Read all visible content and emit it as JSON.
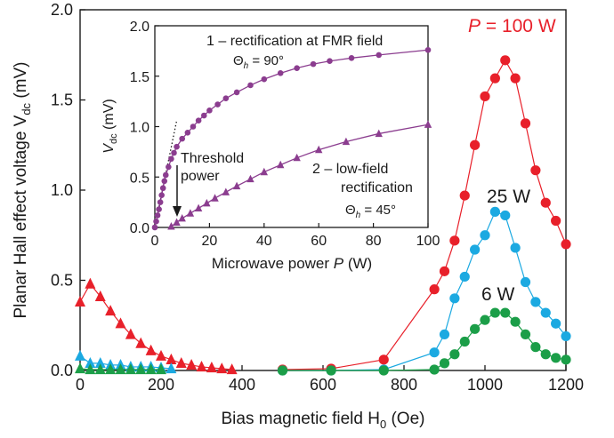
{
  "chart_data": [
    {
      "type": "line",
      "title": "",
      "xlabel_main": "Bias magnetic field H",
      "xlabel_sub": "0",
      "xlabel_unit": " (Oe)",
      "ylabel_main": "Planar Hall effect voltage V",
      "ylabel_sub": "dc",
      "ylabel_unit": " (mV)",
      "xlim": [
        0,
        1200
      ],
      "ylim": [
        0,
        2.0
      ],
      "xticks": [
        0,
        200,
        400,
        600,
        800,
        1000,
        1200
      ],
      "yticks": [
        0.0,
        0.5,
        1.0,
        1.5,
        2.0
      ],
      "ytick_labels": [
        "0.0",
        "0.5",
        "1.0",
        "1.5",
        "2.0"
      ],
      "grid": false,
      "series": [
        {
          "name": "P = 100 W",
          "label_p": "P",
          "label_rest": " = 100 W",
          "color": "#e8202a",
          "lowfield_marker": "triangle",
          "lowfield": {
            "x": [
              0,
              25,
              50,
              75,
              100,
              125,
              150,
              175,
              200,
              225,
              250,
              275,
              300,
              325,
              350,
              375
            ],
            "y": [
              0.38,
              0.48,
              0.41,
              0.33,
              0.26,
              0.2,
              0.15,
              0.11,
              0.08,
              0.06,
              0.04,
              0.03,
              0.02,
              0.015,
              0.01,
              0.005
            ]
          },
          "highfield_marker": "circle",
          "highfield": {
            "x": [
              500,
              620,
              750,
              875,
              900,
              925,
              950,
              975,
              1000,
              1025,
              1050,
              1075,
              1100,
              1125,
              1150,
              1175,
              1200
            ],
            "y": [
              0.005,
              0.01,
              0.06,
              0.45,
              0.55,
              0.72,
              0.97,
              1.25,
              1.52,
              1.62,
              1.72,
              1.62,
              1.37,
              1.11,
              0.93,
              0.83,
              0.7
            ]
          }
        },
        {
          "name": "25 W",
          "label_p": "",
          "label_rest": "25 W",
          "color": "#1ba9e1",
          "lowfield_marker": "triangle",
          "lowfield": {
            "x": [
              0,
              25,
              50,
              75,
              100,
              125,
              150,
              175,
              200,
              225
            ],
            "y": [
              0.08,
              0.04,
              0.04,
              0.03,
              0.03,
              0.02,
              0.02,
              0.02,
              0.015,
              0.01
            ]
          },
          "highfield_marker": "circle",
          "highfield": {
            "x": [
              500,
              620,
              750,
              875,
              900,
              925,
              950,
              975,
              1000,
              1025,
              1050,
              1075,
              1100,
              1125,
              1150,
              1175,
              1200
            ],
            "y": [
              0.0,
              0.0,
              0.005,
              0.1,
              0.2,
              0.4,
              0.52,
              0.67,
              0.75,
              0.88,
              0.86,
              0.68,
              0.49,
              0.38,
              0.32,
              0.26,
              0.19
            ]
          }
        },
        {
          "name": "6 W",
          "label_p": "",
          "label_rest": "6 W",
          "color": "#1b9e48",
          "lowfield_marker": "triangle",
          "lowfield": {
            "x": [
              0,
              25,
              50,
              75,
              100,
              125,
              150,
              175,
              200
            ],
            "y": [
              0.01,
              0.005,
              0.005,
              0.005,
              0.005,
              0.005,
              0.005,
              0.005,
              0.005
            ]
          },
          "highfield_marker": "circle",
          "highfield": {
            "x": [
              500,
              620,
              750,
              875,
              900,
              925,
              950,
              975,
              1000,
              1025,
              1050,
              1075,
              1100,
              1125,
              1150,
              1175,
              1200
            ],
            "y": [
              0.0,
              0.0,
              0.0,
              0.005,
              0.04,
              0.09,
              0.16,
              0.23,
              0.28,
              0.32,
              0.32,
              0.27,
              0.2,
              0.13,
              0.09,
              0.07,
              0.06
            ]
          }
        }
      ]
    },
    {
      "type": "line",
      "inset": true,
      "title": "",
      "xlabel": "Microwave power P (W)",
      "xlabel_main": "Microwave power ",
      "xlabel_p": "P",
      "xlabel_unit": " (W)",
      "ylabel_main": "V",
      "ylabel_sub": "dc",
      "ylabel_unit": " (mV)",
      "xlim": [
        0,
        100
      ],
      "ylim": [
        0,
        2.0
      ],
      "xticks": [
        0,
        20,
        40,
        60,
        80,
        100
      ],
      "yticks": [
        0.0,
        0.5,
        1.0,
        1.5,
        2.0
      ],
      "ytick_labels": [
        "0.0",
        "0.5",
        "1.0",
        "1.5",
        "2.0"
      ],
      "grid": false,
      "color": "#8b3d8f",
      "series": [
        {
          "name": "1 – rectification at FMR field",
          "marker": "circle",
          "x": [
            0,
            0.5,
            1,
            1.5,
            2,
            2.5,
            3,
            3.5,
            4,
            5,
            6,
            7,
            8,
            10,
            12,
            14,
            16,
            18,
            20,
            23,
            26,
            30,
            35,
            40,
            46,
            52,
            58,
            64,
            72,
            82,
            100
          ],
          "y": [
            0.0,
            0.06,
            0.12,
            0.18,
            0.25,
            0.32,
            0.39,
            0.46,
            0.52,
            0.6,
            0.68,
            0.74,
            0.8,
            0.88,
            0.94,
            1.0,
            1.06,
            1.11,
            1.16,
            1.22,
            1.28,
            1.34,
            1.41,
            1.47,
            1.53,
            1.58,
            1.62,
            1.65,
            1.68,
            1.71,
            1.76
          ]
        },
        {
          "name": "2 – low-field rectification",
          "marker": "triangle",
          "x": [
            6,
            8,
            10,
            13,
            16,
            19,
            22,
            26,
            30,
            35,
            40,
            46,
            52,
            60,
            70,
            82,
            100
          ],
          "y": [
            0.01,
            0.05,
            0.09,
            0.14,
            0.19,
            0.24,
            0.29,
            0.35,
            0.41,
            0.48,
            0.55,
            0.62,
            0.69,
            0.77,
            0.85,
            0.93,
            1.02
          ]
        }
      ],
      "asymptote": {
        "x": [
          0,
          8
        ],
        "y": [
          0,
          1.06
        ]
      },
      "annotations": {
        "series1_label": "1 – rectification at FMR field",
        "series1_theta_sym": "Θ",
        "series1_theta_sub": "h",
        "series1_theta_val": " = 90°",
        "series2_line1": "2 – low-field",
        "series2_line2": "rectification",
        "series2_theta_sym": "Θ",
        "series2_theta_sub": "h",
        "series2_theta_val": " = 45°",
        "threshold_line1": "Threshold",
        "threshold_line2": "power"
      }
    }
  ]
}
